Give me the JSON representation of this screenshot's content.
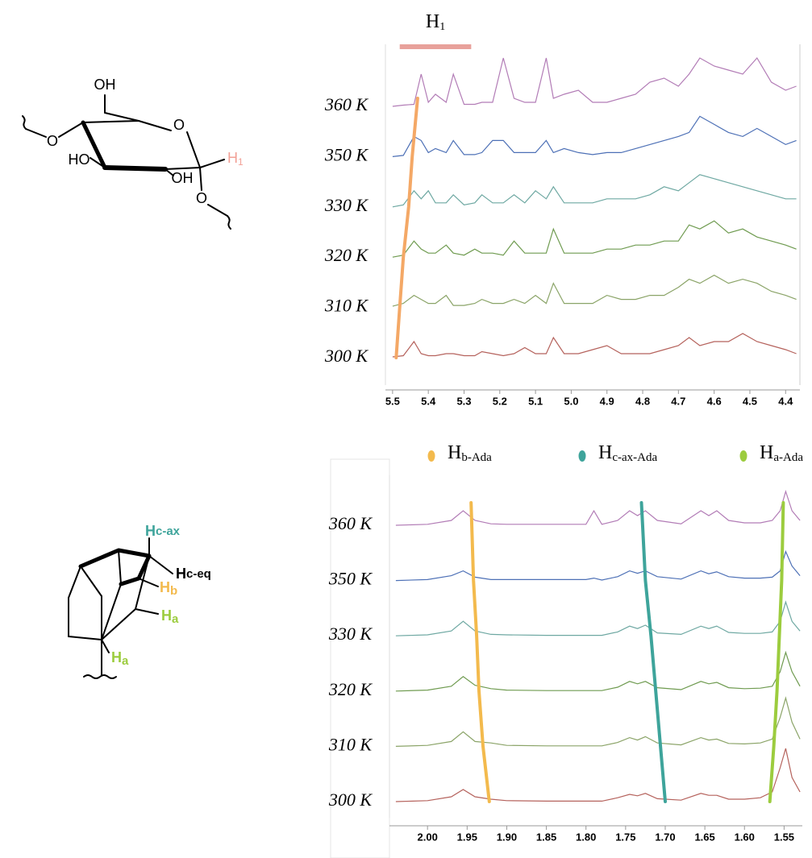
{
  "structures": {
    "glucose": {
      "labels": [
        {
          "text": "OH"
        },
        {
          "text": "O"
        },
        {
          "text": "O"
        },
        {
          "text": "HO"
        },
        {
          "text": "OH"
        },
        {
          "text": "H",
          "sub": "1"
        },
        {
          "text": "O"
        }
      ]
    },
    "adamantane": {
      "labels": [
        {
          "text": "H",
          "sub": "c-ax"
        },
        {
          "text": "H",
          "sub": "c-eq"
        },
        {
          "text": "H",
          "sub": "b"
        },
        {
          "text": "H",
          "sub": "a"
        },
        {
          "text": "H",
          "sub": "a"
        }
      ]
    }
  },
  "chart_data": [
    {
      "type": "line",
      "x": [
        5.5,
        5.47,
        5.44,
        5.42,
        5.4,
        5.38,
        5.35,
        5.33,
        5.3,
        5.27,
        5.25,
        5.22,
        5.19,
        5.16,
        5.13,
        5.1,
        5.07,
        5.05,
        5.02,
        4.98,
        4.94,
        4.9,
        4.86,
        4.82,
        4.78,
        4.74,
        4.7,
        4.67,
        4.64,
        4.6,
        4.56,
        4.52,
        4.48,
        4.44,
        4.4,
        4.37
      ],
      "xlim": [
        5.52,
        4.36
      ],
      "xticks": [
        {
          "value": 5.5,
          "label": "5.5"
        },
        {
          "value": 5.4,
          "label": "5.4"
        },
        {
          "value": 5.3,
          "label": "5.3"
        },
        {
          "value": 5.2,
          "label": "5.2"
        },
        {
          "value": 5.1,
          "label": "5.1"
        },
        {
          "value": 5.0,
          "label": "5.0"
        },
        {
          "value": 4.9,
          "label": "4.9"
        },
        {
          "value": 4.8,
          "label": "4.8"
        },
        {
          "value": 4.7,
          "label": "4.7"
        },
        {
          "value": 4.6,
          "label": "4.6"
        },
        {
          "value": 4.5,
          "label": "4.5"
        },
        {
          "value": 4.4,
          "label": "4.4"
        }
      ],
      "series": [
        {
          "name": "360 K",
          "color": "#b27cb6",
          "values": [
            0,
            0.3,
            0.5,
            8,
            1,
            3,
            1,
            8,
            0.5,
            0.5,
            1,
            1,
            12,
            2,
            1,
            1,
            12,
            2,
            3,
            4,
            1,
            1,
            2,
            3,
            6,
            7,
            5,
            8,
            12,
            10,
            9,
            8,
            12,
            6,
            4,
            5
          ]
        },
        {
          "name": "350 K",
          "color": "#4d70b6",
          "values": [
            0,
            0.3,
            5,
            4,
            1,
            2,
            1,
            4,
            0.5,
            0.5,
            1,
            4,
            4,
            1,
            1,
            1,
            4,
            1,
            2,
            1,
            0.5,
            1,
            1,
            2,
            3,
            4,
            5,
            6,
            10,
            8,
            6,
            5,
            7,
            5,
            3,
            4
          ]
        },
        {
          "name": "330 K",
          "color": "#6ea8a2",
          "values": [
            0,
            0.5,
            4,
            2,
            4,
            1,
            1,
            3,
            0.5,
            1,
            3,
            1,
            1,
            3,
            1,
            4,
            2,
            5,
            1,
            1,
            1,
            2,
            2,
            2,
            3,
            5,
            4,
            6,
            8,
            7,
            6,
            5,
            4,
            3,
            2,
            2
          ]
        },
        {
          "name": "320 K",
          "color": "#6f9b50",
          "values": [
            0,
            0.5,
            4,
            2,
            1,
            1,
            3,
            1,
            0.5,
            2,
            1,
            1,
            0.5,
            4,
            1,
            1,
            1,
            7,
            1,
            1,
            1,
            2,
            2,
            3,
            3,
            4,
            4,
            8,
            7,
            9,
            6,
            7,
            5,
            4,
            3,
            2
          ]
        },
        {
          "name": "310 K",
          "color": "#8ba468",
          "values": [
            0.3,
            1,
            3,
            2,
            1,
            1,
            3,
            0.5,
            0.5,
            1,
            2,
            1,
            1,
            2,
            1,
            3,
            1,
            6,
            1,
            1,
            1,
            3,
            2,
            2,
            3,
            3,
            5,
            7,
            6,
            8,
            6,
            7,
            6,
            4,
            3,
            2
          ]
        },
        {
          "name": "300 K",
          "color": "#b5625c",
          "values": [
            0.2,
            0.5,
            4,
            1,
            0.5,
            0.5,
            1,
            1,
            0.5,
            0.5,
            1.5,
            1,
            0.5,
            1,
            2.5,
            1,
            1,
            5,
            1,
            1,
            2,
            3,
            1,
            1,
            1,
            2,
            3,
            5,
            3,
            4,
            4,
            6,
            4,
            3,
            2,
            1
          ]
        }
      ],
      "highlight": {
        "label": "H",
        "subscript": "1",
        "from": 5.48,
        "to": 5.28,
        "color": "#e8a19b"
      },
      "guides": [
        {
          "color": "#f4a866",
          "x": [
            5.43,
            5.445,
            5.455,
            5.47,
            5.48,
            5.49
          ]
        }
      ]
    },
    {
      "type": "line",
      "x": [
        2.04,
        2.0,
        1.97,
        1.955,
        1.94,
        1.92,
        1.9,
        1.85,
        1.8,
        1.79,
        1.78,
        1.76,
        1.745,
        1.735,
        1.725,
        1.71,
        1.68,
        1.655,
        1.645,
        1.635,
        1.62,
        1.6,
        1.58,
        1.565,
        1.555,
        1.548,
        1.54,
        1.53
      ],
      "xlim": [
        2.048,
        1.527
      ],
      "xticks": [
        {
          "value": 2.0,
          "label": "2.00"
        },
        {
          "value": 1.95,
          "label": "1.95"
        },
        {
          "value": 1.9,
          "label": "1.90"
        },
        {
          "value": 1.85,
          "label": "1.85"
        },
        {
          "value": 1.8,
          "label": "1.80"
        },
        {
          "value": 1.75,
          "label": "1.75"
        },
        {
          "value": 1.7,
          "label": "1.70"
        },
        {
          "value": 1.65,
          "label": "1.65"
        },
        {
          "value": 1.6,
          "label": "1.60"
        },
        {
          "value": 1.55,
          "label": "1.55"
        }
      ],
      "series": [
        {
          "name": "360 K",
          "color": "#b27cb6",
          "values": [
            0,
            0.2,
            1,
            3,
            1,
            0.3,
            0.2,
            0.2,
            0.2,
            3,
            0.2,
            1,
            3,
            2,
            3,
            1,
            0.3,
            3,
            2,
            3,
            1,
            0.5,
            0.5,
            1,
            3,
            7,
            3,
            1
          ]
        },
        {
          "name": "350 K",
          "color": "#4d70b6",
          "values": [
            0,
            0.2,
            1,
            2,
            0.7,
            0.2,
            0.2,
            0.2,
            0.2,
            0.5,
            0.1,
            0.8,
            2,
            1.5,
            2,
            0.8,
            0.3,
            2,
            1.4,
            1.8,
            0.8,
            0.5,
            0.5,
            0.7,
            2,
            6,
            3,
            1
          ]
        },
        {
          "name": "330 K",
          "color": "#6ea8a2",
          "values": [
            0,
            0.2,
            1,
            3,
            1,
            0.3,
            0.2,
            0.1,
            0.1,
            0.1,
            0.1,
            0.8,
            2,
            1.5,
            2.2,
            0.6,
            0.3,
            2,
            1.5,
            2,
            0.7,
            0.5,
            0.5,
            0.8,
            3,
            7,
            3,
            1
          ]
        },
        {
          "name": "320 K",
          "color": "#6f9b50",
          "values": [
            0,
            0.2,
            1,
            3,
            1.2,
            0.5,
            0.2,
            0.1,
            0.1,
            0.1,
            0.1,
            0.8,
            2,
            1.5,
            2,
            0.7,
            0.3,
            2,
            1.5,
            1.8,
            0.7,
            0.5,
            0.6,
            1,
            4,
            8,
            4,
            1
          ]
        },
        {
          "name": "310 K",
          "color": "#8ba468",
          "values": [
            0,
            0.2,
            1,
            3,
            1,
            0.7,
            0.2,
            0.1,
            0.1,
            0.1,
            0.1,
            0.8,
            1.8,
            1.3,
            2,
            0.7,
            0.3,
            1.8,
            1.3,
            1.5,
            0.6,
            0.5,
            0.7,
            1.5,
            6,
            10,
            5,
            1.5
          ]
        },
        {
          "name": "300 K",
          "color": "#b5625c",
          "values": [
            0,
            0.2,
            1,
            2.5,
            1,
            0.5,
            0.2,
            0.1,
            0.1,
            0.1,
            0.1,
            0.8,
            1.5,
            1.2,
            1.7,
            0.6,
            0.3,
            1.7,
            1.3,
            1.3,
            0.5,
            0.5,
            0.8,
            2,
            7,
            11,
            5,
            2
          ]
        }
      ],
      "guides": [
        {
          "label": "H",
          "subscript": "b-Ada",
          "color": "#f3ba4d",
          "x": [
            1.945,
            1.942,
            1.938,
            1.935,
            1.93,
            1.922
          ]
        },
        {
          "label": "H",
          "subscript": "c-ax-Ada",
          "color": "#3ea49b",
          "x": [
            1.73,
            1.725,
            1.718,
            1.712,
            1.706,
            1.7
          ]
        },
        {
          "label": "H",
          "subscript": "a-Ada",
          "color": "#9ccc3e",
          "x": [
            1.551,
            1.553,
            1.556,
            1.559,
            1.563,
            1.568
          ]
        }
      ]
    }
  ]
}
